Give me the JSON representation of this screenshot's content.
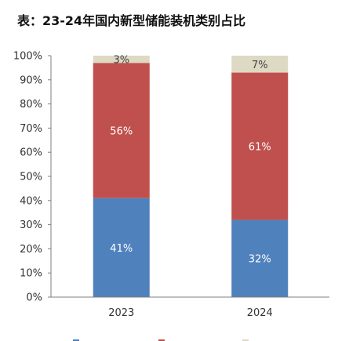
{
  "title": "表：23-24年国内新型储能装机类别占比",
  "chart_data": {
    "type": "bar",
    "stacked": true,
    "categories": [
      "2023",
      "2024"
    ],
    "series": [
      {
        "values": [
          41,
          32
        ],
        "labels": [
          "41%",
          "32%"
        ],
        "color": "#4f81bd"
      },
      {
        "values": [
          56,
          61
        ],
        "labels": [
          "56%",
          "61%"
        ],
        "color": "#c0504d"
      },
      {
        "values": [
          3,
          7
        ],
        "labels": [
          "3%",
          "7%"
        ],
        "color": "#ddd9c3"
      }
    ],
    "ylim": [
      0,
      100
    ],
    "yticks": [
      "0%",
      "10%",
      "20%",
      "30%",
      "40%",
      "50%",
      "60%",
      "70%",
      "80%",
      "90%",
      "100%"
    ],
    "grid": false,
    "legend_position": "bottom"
  }
}
